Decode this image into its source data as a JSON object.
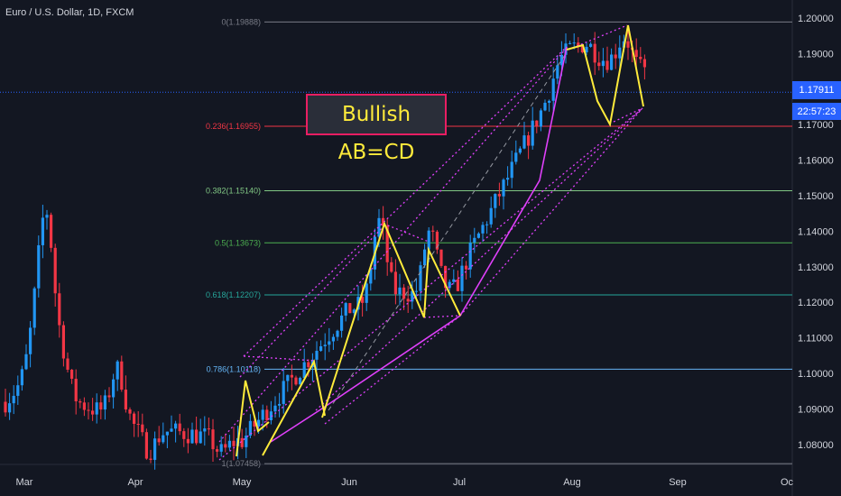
{
  "header": {
    "title": "Euro / U.S. Dollar, 1D, FXCM"
  },
  "annotation": {
    "text": "Bullish AB=CD"
  },
  "price_tags": {
    "last_price": "1.17911",
    "countdown": "22:57:23"
  },
  "colors": {
    "background": "#131722",
    "up_candle": "#2196f3",
    "down_candle": "#f23645",
    "pattern_line": "#ffeb3b",
    "channel_line": "#e040fb",
    "last_price_line": "#2962ff",
    "axis_text": "#d1d4dc"
  },
  "chart_data": {
    "type": "candlestick",
    "title": "Euro / U.S. Dollar, 1D, FXCM",
    "x_axis": {
      "ticks": [
        "Mar",
        "Apr",
        "May",
        "Jun",
        "Jul",
        "Aug",
        "Sep",
        "Oc"
      ]
    },
    "y_axis": {
      "ticks": [
        "1.20000",
        "1.19000",
        "1.17000",
        "1.16000",
        "1.15000",
        "1.14000",
        "1.13000",
        "1.12000",
        "1.11000",
        "1.10000",
        "1.09000",
        "1.08000"
      ],
      "range": [
        1.0725,
        1.2035
      ]
    },
    "last_price": 1.17911,
    "fibonacci_levels": [
      {
        "label": "0(1.19888)",
        "value": 1.19888,
        "color": "#787b86"
      },
      {
        "label": "0.236(1.16955)",
        "value": 1.16955,
        "color": "#f23645"
      },
      {
        "label": "0.382(1.15140)",
        "value": 1.1514,
        "color": "#81c784"
      },
      {
        "label": "0.5(1.13673)",
        "value": 1.13673,
        "color": "#4caf50"
      },
      {
        "label": "0.618(1.12207)",
        "value": 1.12207,
        "color": "#26a69a"
      },
      {
        "label": "0.786(1.10118)",
        "value": 1.10118,
        "color": "#64b5f6"
      },
      {
        "label": "1(1.07458)",
        "value": 1.07458,
        "color": "#787b86"
      }
    ],
    "abcd_patterns": [
      [
        [
          "May",
          1.0815
        ],
        [
          "May",
          1.1045
        ],
        [
          "May",
          1.0748
        ],
        [
          "May",
          1.1028
        ],
        [
          "Jun",
          1.0868
        ]
      ],
      [
        [
          "Jun",
          1.0868
        ],
        [
          "Jun",
          1.1425
        ],
        [
          "Jun",
          1.1148
        ],
        [
          "Jun",
          1.1345
        ],
        [
          "Jul",
          1.1158
        ]
      ],
      [
        [
          "Jul",
          1.1158
        ],
        [
          "Aug",
          1.1908
        ],
        [
          "Aug",
          1.1698
        ],
        [
          "Aug",
          1.1925
        ],
        [
          "Aug",
          1.1698
        ]
      ],
      [
        [
          "Aug",
          1.1698
        ],
        [
          "Aug",
          1.1988
        ],
        [
          "Aug",
          1.1791
        ]
      ]
    ]
  }
}
